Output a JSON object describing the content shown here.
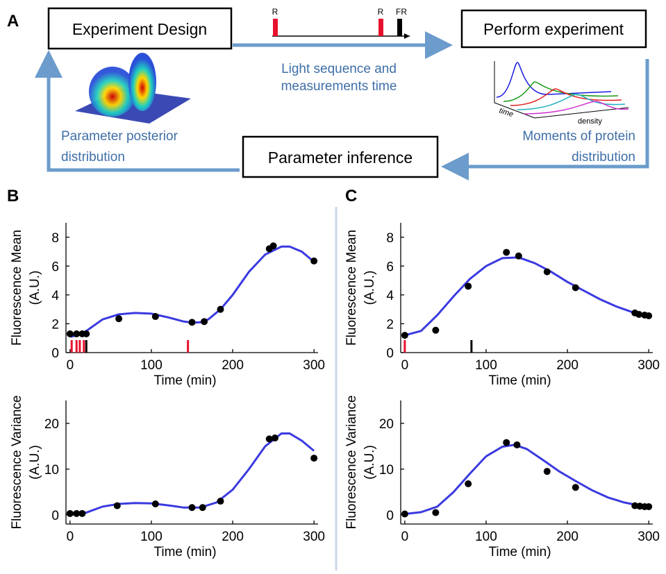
{
  "panel_labels": [
    "A",
    "B",
    "C"
  ],
  "diagram": {
    "boxes": [
      "Experiment Design",
      "Perform experiment",
      "Parameter inference"
    ],
    "arrow_notes": {
      "design_to_experiment": [
        "Light sequence and",
        "measurements time"
      ],
      "experiment_to_inference": [
        "Moments of protein",
        "distribution"
      ],
      "inference_to_design": [
        "Parameter posterior",
        "distribution"
      ]
    },
    "sequence_labels": [
      "R",
      "R",
      "FR"
    ],
    "density_axes": [
      "time",
      "density"
    ]
  },
  "chart_data": [
    {
      "type": "line",
      "ylabel": [
        "Fluorescence Mean",
        "(A.U.)"
      ],
      "xlabel": "Time (min)",
      "xlim": [
        -5,
        305
      ],
      "ylim": [
        0,
        9
      ],
      "xticks": [
        0,
        100,
        200,
        300
      ],
      "yticks": [
        0,
        2,
        4,
        6,
        8
      ],
      "fit": {
        "color": "#3a3ae0",
        "x": [
          0,
          10,
          20,
          40,
          60,
          80,
          100,
          120,
          140,
          150,
          160,
          170,
          185,
          200,
          220,
          240,
          260,
          270,
          285,
          300
        ],
        "values": [
          1.1,
          1.2,
          1.5,
          2.3,
          2.65,
          2.75,
          2.7,
          2.45,
          2.15,
          2.08,
          2.1,
          2.3,
          3.0,
          4.0,
          5.6,
          6.8,
          7.35,
          7.35,
          7.0,
          6.3
        ]
      },
      "points": {
        "color": "#000000",
        "x": [
          0,
          8,
          15,
          20,
          60,
          105,
          150,
          165,
          185,
          245,
          250,
          300
        ],
        "values": [
          1.3,
          1.3,
          1.3,
          1.3,
          2.35,
          2.5,
          2.1,
          2.15,
          3.0,
          7.2,
          7.4,
          6.35
        ]
      },
      "red_pulses": [
        2,
        8,
        12,
        17,
        145
      ],
      "far_red_pulses": [
        20
      ]
    },
    {
      "type": "line",
      "ylabel": [
        "Fluorescence Variance",
        "(A.U.)"
      ],
      "xlabel": "Time (min)",
      "xlim": [
        -5,
        305
      ],
      "ylim": [
        -2,
        25
      ],
      "xticks": [
        0,
        100,
        200,
        300
      ],
      "yticks": [
        0,
        10,
        20
      ],
      "fit": {
        "color": "#3a3ae0",
        "x": [
          0,
          20,
          40,
          60,
          80,
          100,
          120,
          140,
          160,
          180,
          200,
          220,
          240,
          260,
          270,
          285,
          300
        ],
        "values": [
          0,
          0.5,
          1.8,
          2.4,
          2.6,
          2.5,
          2.1,
          1.6,
          1.6,
          2.7,
          5.5,
          10,
          15,
          17.8,
          17.8,
          16.2,
          14
        ]
      },
      "points": {
        "color": "#000000",
        "x": [
          0,
          8,
          15,
          58,
          105,
          150,
          163,
          185,
          245,
          252,
          300
        ],
        "values": [
          0.3,
          0.3,
          0.3,
          2.0,
          2.4,
          1.6,
          1.6,
          3.0,
          16.6,
          16.8,
          12.4
        ]
      }
    },
    {
      "type": "line",
      "ylabel": [
        "Fluorescence Mean",
        "(A.U.)"
      ],
      "xlabel": "Time (min)",
      "xlim": [
        -5,
        305
      ],
      "ylim": [
        0,
        9
      ],
      "xticks": [
        0,
        100,
        200,
        300
      ],
      "yticks": [
        0,
        2,
        4,
        6,
        8
      ],
      "fit": {
        "color": "#3a3ae0",
        "x": [
          0,
          20,
          40,
          60,
          80,
          100,
          120,
          140,
          160,
          180,
          200,
          220,
          240,
          260,
          280,
          300
        ],
        "values": [
          1.2,
          1.5,
          2.6,
          3.9,
          5.1,
          6.0,
          6.55,
          6.6,
          6.2,
          5.6,
          4.9,
          4.3,
          3.7,
          3.2,
          2.8,
          2.5
        ]
      },
      "points": {
        "color": "#000000",
        "x": [
          0,
          38,
          78,
          125,
          140,
          175,
          210,
          283,
          288,
          295,
          300
        ],
        "values": [
          1.2,
          1.55,
          4.6,
          6.95,
          6.7,
          5.6,
          4.5,
          2.75,
          2.65,
          2.6,
          2.55
        ]
      },
      "red_pulses": [
        0
      ],
      "far_red_pulses": [
        82
      ]
    },
    {
      "type": "line",
      "ylabel": [
        "Fluorescence Variance",
        "(A.U.)"
      ],
      "xlabel": "Time (min)",
      "xlim": [
        -5,
        305
      ],
      "ylim": [
        -2,
        25
      ],
      "xticks": [
        0,
        100,
        200,
        300
      ],
      "yticks": [
        0,
        10,
        20
      ],
      "fit": {
        "color": "#3a3ae0",
        "x": [
          0,
          20,
          40,
          60,
          80,
          100,
          120,
          135,
          150,
          170,
          190,
          210,
          230,
          250,
          270,
          290,
          300
        ],
        "values": [
          0.2,
          0.6,
          1.8,
          5,
          9,
          12.8,
          14.9,
          15.3,
          14.4,
          12,
          9.5,
          7.4,
          5.4,
          3.8,
          2.7,
          2.0,
          1.7
        ]
      },
      "points": {
        "color": "#000000",
        "x": [
          0,
          38,
          78,
          125,
          138,
          175,
          210,
          283,
          289,
          295,
          300
        ],
        "values": [
          0.2,
          0.5,
          6.8,
          15.8,
          15.3,
          9.5,
          6.0,
          2.0,
          1.9,
          1.8,
          1.8
        ]
      }
    }
  ]
}
